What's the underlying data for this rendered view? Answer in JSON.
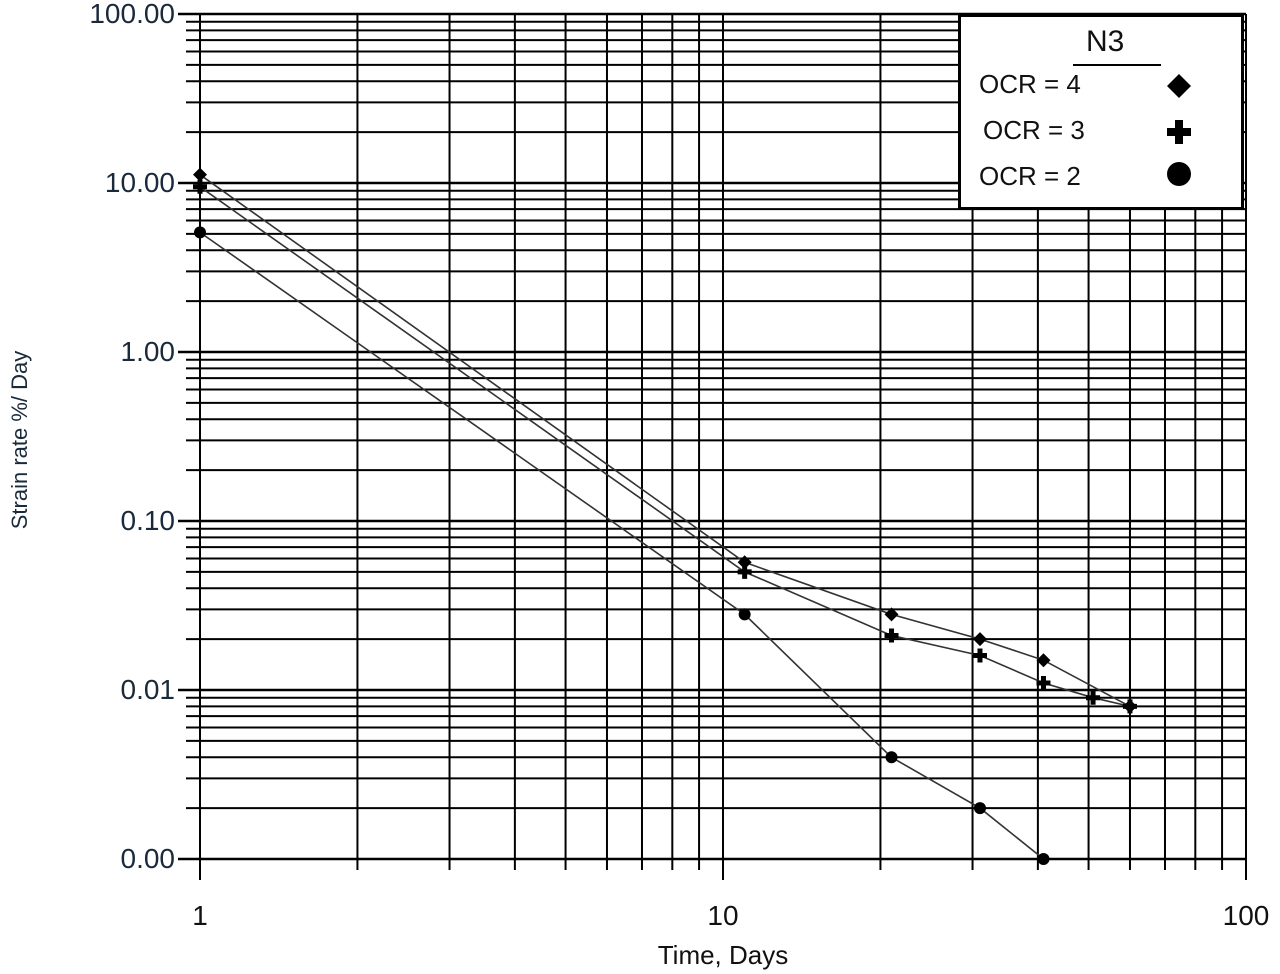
{
  "chart_data": {
    "type": "line",
    "title": "",
    "xlabel": "Time, Days",
    "ylabel": "Strain rate %/ Day",
    "xscale": "log",
    "yscale": "log",
    "xlim": [
      1,
      100
    ],
    "ylim": [
      0.001,
      100
    ],
    "x_tick_labels": [
      "1",
      "10",
      "100"
    ],
    "y_tick_labels": [
      "100.00",
      "10.00",
      "1.00",
      "0.10",
      "0.01",
      "0.00"
    ],
    "grid": true,
    "legend": {
      "title": "N3",
      "position": "top-right",
      "entries": [
        {
          "label": "OCR = 4",
          "marker": "diamond"
        },
        {
          "label": "OCR = 3",
          "marker": "plus"
        },
        {
          "label": "OCR = 2",
          "marker": "circle"
        }
      ]
    },
    "series": [
      {
        "name": "OCR = 4",
        "marker": "diamond",
        "x": [
          1,
          11,
          21,
          31,
          41,
          60
        ],
        "y": [
          11.2,
          0.057,
          0.028,
          0.02,
          0.015,
          0.008
        ]
      },
      {
        "name": "OCR = 3",
        "marker": "plus",
        "x": [
          1,
          11,
          21,
          31,
          41,
          51,
          60
        ],
        "y": [
          9.5,
          0.05,
          0.021,
          0.016,
          0.011,
          0.009,
          0.008
        ]
      },
      {
        "name": "OCR = 2",
        "marker": "circle",
        "x": [
          1,
          11,
          21,
          31,
          41
        ],
        "y": [
          5.1,
          0.028,
          0.004,
          0.002,
          0.001
        ]
      }
    ]
  },
  "axes": {
    "xlabel": "Time, Days",
    "ylabel": "Strain rate %/ Day",
    "yticks": [
      {
        "label": "100.00",
        "value": 100
      },
      {
        "label": "10.00",
        "value": 10
      },
      {
        "label": "1.00",
        "value": 1
      },
      {
        "label": "0.10",
        "value": 0.1
      },
      {
        "label": "0.01",
        "value": 0.01
      },
      {
        "label": "0.00",
        "value": 0.001
      }
    ],
    "xticks": [
      {
        "label": "1",
        "value": 1
      },
      {
        "label": "10",
        "value": 10
      },
      {
        "label": "100",
        "value": 100
      }
    ]
  },
  "legend": {
    "title": "N3",
    "entries": [
      {
        "label": "OCR = 4",
        "marker": "diamond"
      },
      {
        "label": "OCR = 3",
        "marker": "plus"
      },
      {
        "label": "OCR = 2",
        "marker": "circle"
      }
    ]
  }
}
